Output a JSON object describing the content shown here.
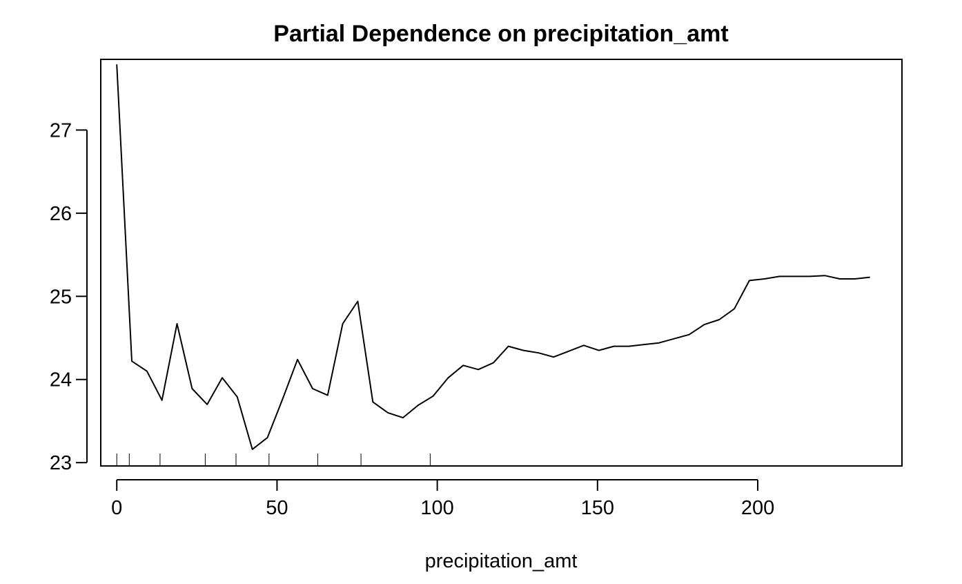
{
  "chart_data": {
    "type": "line",
    "title": "Partial Dependence on precipitation_amt",
    "xlabel": "precipitation_amt",
    "ylabel": "",
    "xlim": [
      -5.0,
      245.0
    ],
    "ylim": [
      22.96,
      27.85
    ],
    "x_ticks": [
      0,
      50,
      100,
      150,
      200
    ],
    "y_ticks": [
      23,
      24,
      25,
      26,
      27
    ],
    "grid": false,
    "legend": "none",
    "line_color": "#000000",
    "series": [
      {
        "x": [
          0,
          4.7,
          9.4,
          14.1,
          18.8,
          23.5,
          28.2,
          32.9,
          37.6,
          42.3,
          47.0,
          51.7,
          56.4,
          61.1,
          65.8,
          70.5,
          75.2,
          79.9,
          84.6,
          89.3,
          94.0,
          98.7,
          103.4,
          108.1,
          112.8,
          117.5,
          122.2,
          126.9,
          131.6,
          136.3,
          141.0,
          145.7,
          150.4,
          155.1,
          159.8,
          164.5,
          169.2,
          173.9,
          178.6,
          183.3,
          188.0,
          192.7,
          197.4,
          202.1,
          206.8,
          211.5,
          216.2,
          220.9,
          225.6,
          230.3,
          235.0
        ],
        "values": [
          27.79,
          24.22,
          24.1,
          23.75,
          24.67,
          23.89,
          23.7,
          24.02,
          23.79,
          23.16,
          23.3,
          23.76,
          24.24,
          23.89,
          23.81,
          24.67,
          24.94,
          23.73,
          23.6,
          23.54,
          23.69,
          23.8,
          24.02,
          24.17,
          24.12,
          24.2,
          24.4,
          24.35,
          24.32,
          24.27,
          24.34,
          24.41,
          24.35,
          24.4,
          24.4,
          24.42,
          24.44,
          24.49,
          24.54,
          24.66,
          24.72,
          24.85,
          25.19,
          25.21,
          25.24,
          25.24,
          25.24,
          25.25,
          25.21,
          25.21,
          25.23
        ]
      }
    ],
    "rug": [
      0,
      3.9,
      13.5,
      27.6,
      37.2,
      47.5,
      62.7,
      76.2,
      97.8
    ]
  }
}
